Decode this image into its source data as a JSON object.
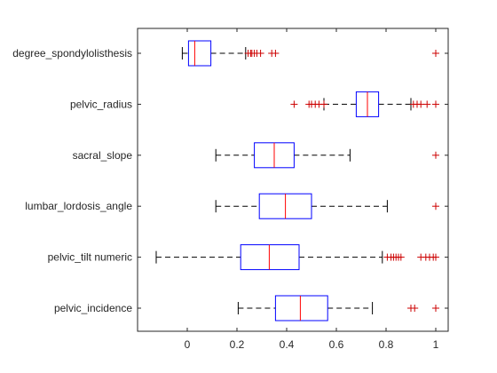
{
  "chart_data": {
    "type": "boxplot",
    "orientation": "horizontal",
    "xlim": [
      -0.2,
      1.05
    ],
    "xticks": [
      0,
      0.2,
      0.4,
      0.6,
      0.8,
      1
    ],
    "xtick_labels": [
      "0",
      "0.2",
      "0.4",
      "0.6",
      "0.8",
      "1"
    ],
    "grid": false,
    "colors": {
      "box": "#0000ff",
      "median": "#ff0000",
      "whisker": "#000000",
      "outlier": "#cc0000",
      "axis": "#262626"
    },
    "categories": [
      {
        "name": "degree_spondylolisthesis",
        "whisker_low": -0.02,
        "q1": 0.005,
        "median": 0.03,
        "q3": 0.095,
        "whisker_high": 0.235,
        "outliers": [
          0.245,
          0.255,
          0.26,
          0.27,
          0.28,
          0.295,
          0.34,
          0.355,
          1.0
        ]
      },
      {
        "name": "pelvic_radius",
        "whisker_low": 0.55,
        "q1": 0.68,
        "median": 0.725,
        "q3": 0.77,
        "whisker_high": 0.9,
        "outliers": [
          0.43,
          0.49,
          0.5,
          0.515,
          0.53,
          0.55,
          0.91,
          0.925,
          0.94,
          0.965,
          1.0
        ]
      },
      {
        "name": "sacral_slope",
        "whisker_low": 0.115,
        "q1": 0.27,
        "median": 0.35,
        "q3": 0.43,
        "whisker_high": 0.655,
        "outliers": [
          1.0
        ]
      },
      {
        "name": "lumbar_lordosis_angle",
        "whisker_low": 0.115,
        "q1": 0.29,
        "median": 0.395,
        "q3": 0.5,
        "whisker_high": 0.805,
        "outliers": [
          1.0
        ]
      },
      {
        "name": "pelvic_tilt numeric",
        "whisker_low": -0.125,
        "q1": 0.215,
        "median": 0.33,
        "q3": 0.45,
        "whisker_high": 0.785,
        "outliers": [
          0.805,
          0.82,
          0.83,
          0.84,
          0.85,
          0.86,
          0.94,
          0.96,
          0.975,
          0.99,
          1.0
        ]
      },
      {
        "name": "pelvic_incidence",
        "whisker_low": 0.205,
        "q1": 0.355,
        "median": 0.455,
        "q3": 0.565,
        "whisker_high": 0.745,
        "outliers": [
          0.9,
          0.915,
          1.0
        ]
      }
    ]
  }
}
